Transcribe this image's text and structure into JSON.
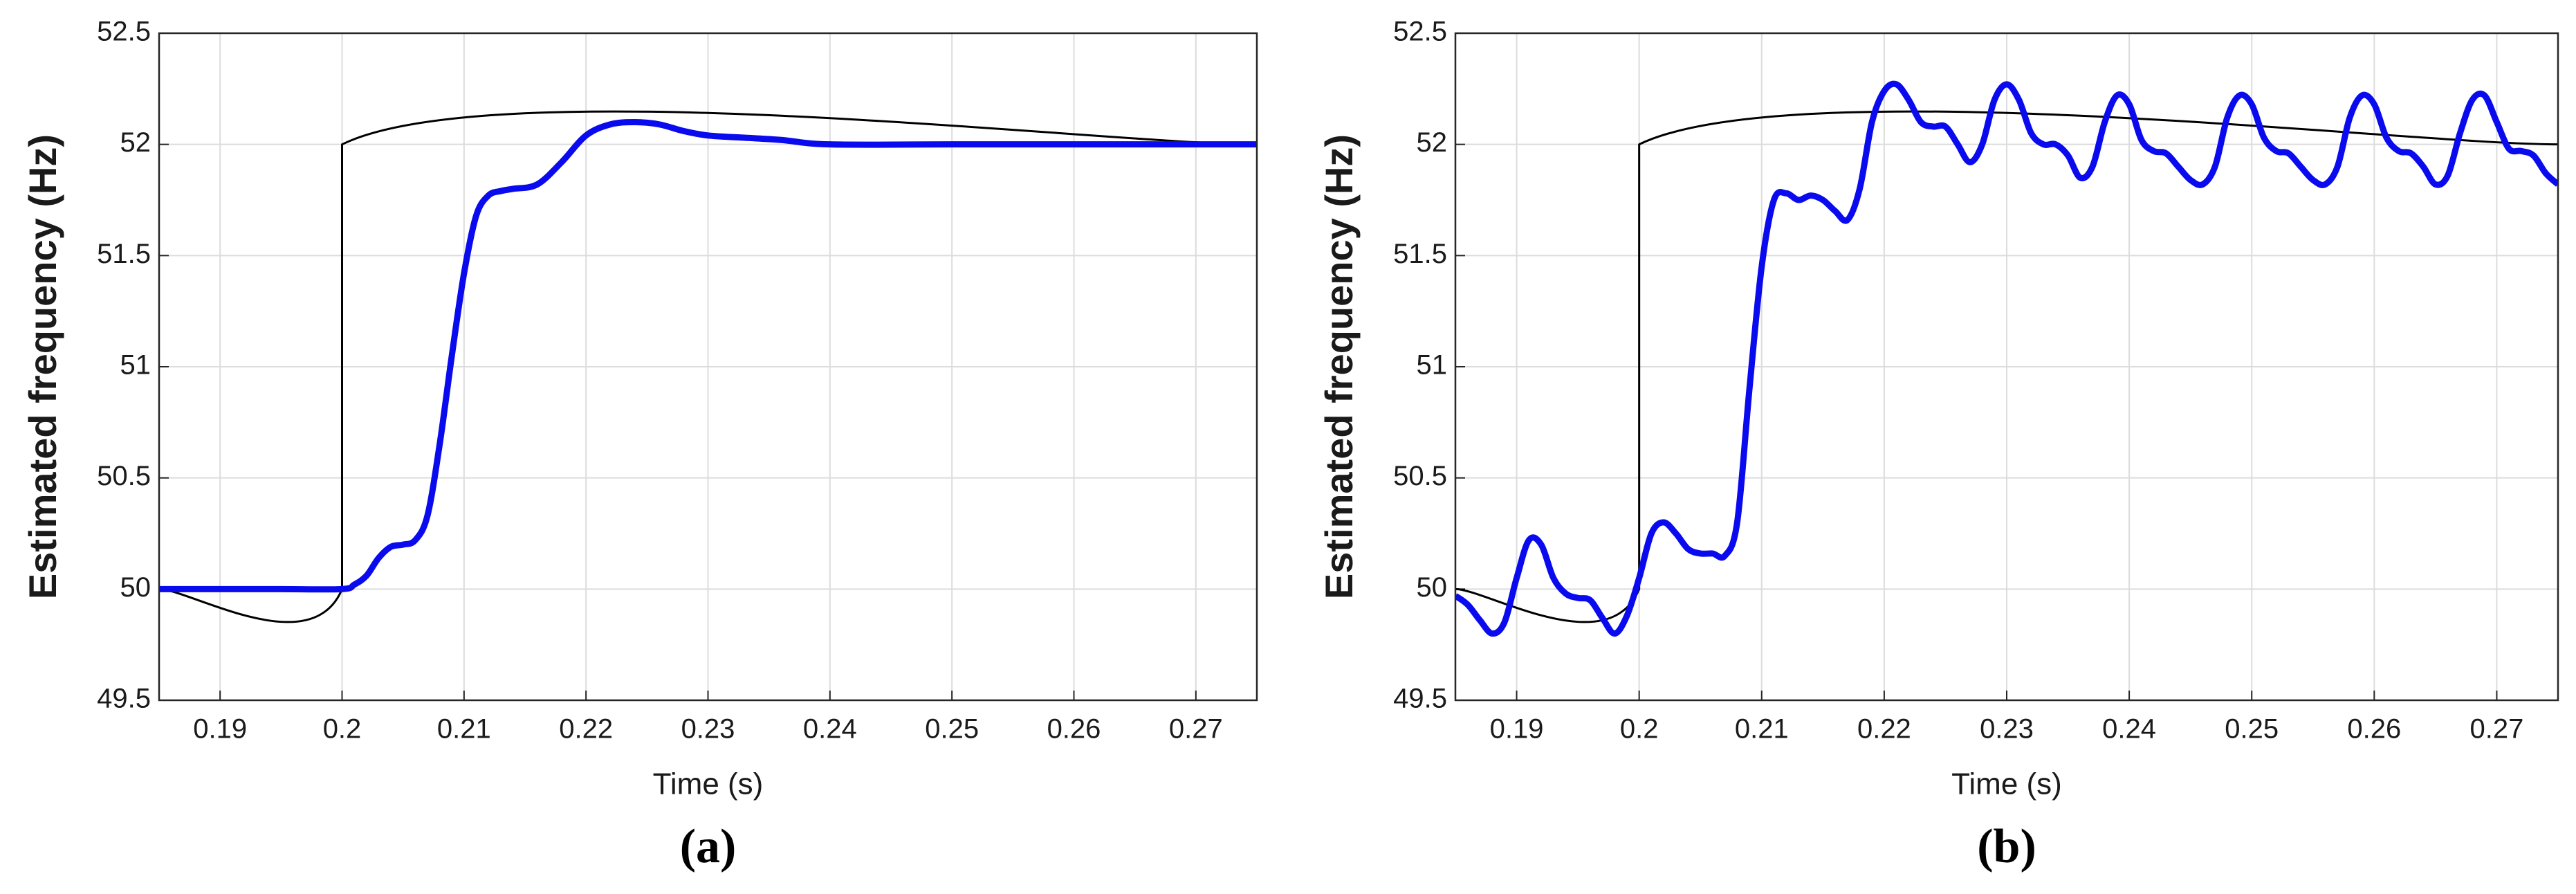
{
  "chart_data": [
    {
      "type": "line",
      "xlabel": "Time (s)",
      "ylabel": "Estimated frequency (Hz)",
      "caption": "(a)",
      "xlim": [
        0.185,
        0.275
      ],
      "ylim": [
        49.5,
        52.5
      ],
      "xticks": [
        0.19,
        0.2,
        0.21,
        0.22,
        0.23,
        0.24,
        0.25,
        0.26,
        0.27
      ],
      "yticks": [
        49.5,
        50,
        50.5,
        51,
        51.5,
        52,
        52.5
      ],
      "grid": true,
      "series": [
        {
          "color": "#000000",
          "x": [
            0.185,
            0.2,
            0.2,
            0.275
          ],
          "values": [
            50,
            50,
            52,
            52
          ]
        },
        {
          "color": "#0a0aee",
          "x": [
            0.185,
            0.19,
            0.195,
            0.2,
            0.201,
            0.202,
            0.203,
            0.204,
            0.205,
            0.206,
            0.207,
            0.208,
            0.209,
            0.21,
            0.211,
            0.212,
            0.213,
            0.214,
            0.216,
            0.218,
            0.22,
            0.222,
            0.224,
            0.226,
            0.228,
            0.23,
            0.233,
            0.236,
            0.24,
            0.25,
            0.26,
            0.275
          ],
          "values": [
            50,
            50,
            50,
            50,
            50.02,
            50.06,
            50.14,
            50.19,
            50.2,
            50.22,
            50.33,
            50.65,
            51.05,
            51.42,
            51.68,
            51.77,
            51.79,
            51.8,
            51.82,
            51.92,
            52.04,
            52.09,
            52.1,
            52.09,
            52.06,
            52.04,
            52.03,
            52.02,
            52,
            52,
            52,
            52
          ]
        }
      ]
    },
    {
      "type": "line",
      "xlabel": "Time (s)",
      "ylabel": "Estimated frequency (Hz)",
      "caption": "(b)",
      "xlim": [
        0.185,
        0.275
      ],
      "ylim": [
        49.5,
        52.5
      ],
      "xticks": [
        0.19,
        0.2,
        0.21,
        0.22,
        0.23,
        0.24,
        0.25,
        0.26,
        0.27
      ],
      "yticks": [
        49.5,
        50,
        50.5,
        51,
        51.5,
        52,
        52.5
      ],
      "grid": true,
      "series": [
        {
          "color": "#000000",
          "x": [
            0.185,
            0.2,
            0.2,
            0.275
          ],
          "values": [
            50,
            50,
            52,
            52
          ]
        },
        {
          "color": "#0a0aee",
          "x": [
            0.185,
            0.186,
            0.187,
            0.188,
            0.189,
            0.19,
            0.191,
            0.192,
            0.193,
            0.194,
            0.195,
            0.196,
            0.197,
            0.198,
            0.199,
            0.2,
            0.201,
            0.202,
            0.203,
            0.204,
            0.205,
            0.206,
            0.207,
            0.208,
            0.209,
            0.21,
            0.211,
            0.212,
            0.213,
            0.214,
            0.215,
            0.216,
            0.217,
            0.218,
            0.219,
            0.22,
            0.221,
            0.222,
            0.223,
            0.224,
            0.225,
            0.226,
            0.227,
            0.228,
            0.229,
            0.23,
            0.231,
            0.232,
            0.233,
            0.234,
            0.235,
            0.236,
            0.237,
            0.238,
            0.239,
            0.24,
            0.241,
            0.242,
            0.243,
            0.244,
            0.245,
            0.246,
            0.247,
            0.248,
            0.249,
            0.25,
            0.251,
            0.252,
            0.253,
            0.254,
            0.255,
            0.256,
            0.257,
            0.258,
            0.259,
            0.26,
            0.261,
            0.262,
            0.263,
            0.264,
            0.265,
            0.266,
            0.267,
            0.268,
            0.269,
            0.27,
            0.271,
            0.272,
            0.273,
            0.274,
            0.275
          ],
          "values": [
            49.97,
            49.93,
            49.86,
            49.8,
            49.85,
            50.05,
            50.22,
            50.2,
            50.05,
            49.98,
            49.96,
            49.95,
            49.87,
            49.8,
            49.88,
            50.05,
            50.25,
            50.3,
            50.25,
            50.18,
            50.16,
            50.16,
            50.15,
            50.3,
            50.9,
            51.45,
            51.75,
            51.78,
            51.75,
            51.77,
            51.75,
            51.7,
            51.66,
            51.8,
            52.1,
            52.24,
            52.27,
            52.2,
            52.1,
            52.08,
            52.08,
            52,
            51.92,
            52,
            52.2,
            52.27,
            52.2,
            52.05,
            52,
            52,
            51.95,
            51.85,
            51.9,
            52.1,
            52.22,
            52.18,
            52.02,
            51.97,
            51.96,
            51.9,
            51.84,
            51.82,
            51.9,
            52.12,
            52.22,
            52.18,
            52.03,
            51.97,
            51.96,
            51.9,
            51.84,
            51.82,
            51.9,
            52.12,
            52.22,
            52.18,
            52.03,
            51.97,
            51.96,
            51.9,
            51.82,
            51.86,
            52.05,
            52.2,
            52.22,
            52.1,
            51.98,
            51.97,
            51.95,
            51.87,
            51.82
          ]
        }
      ]
    }
  ]
}
